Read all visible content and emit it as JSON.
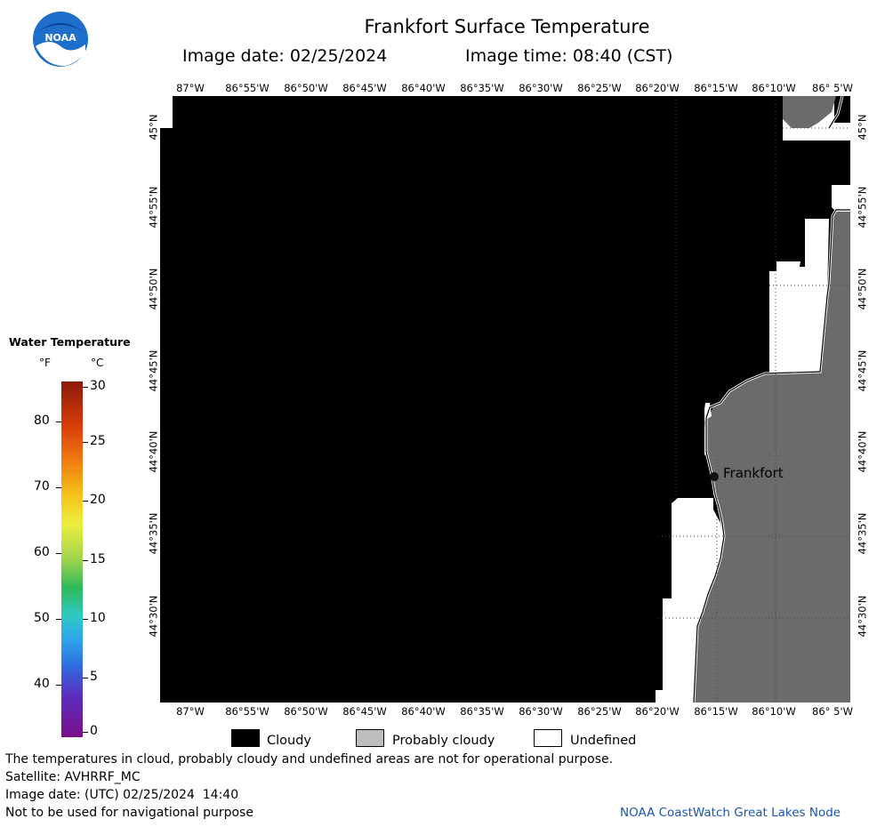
{
  "header": {
    "logo_text": "NOAA",
    "title": "Frankfort Surface Temperature",
    "image_date": "Image date: 02/25/2024",
    "image_time": "Image time: 08:40 (CST)"
  },
  "map": {
    "longitude_labels": [
      "87°W",
      "86°55'W",
      "86°50'W",
      "86°45'W",
      "86°40'W",
      "86°35'W",
      "86°30'W",
      "86°25'W",
      "86°20'W",
      "86°15'W",
      "86°10'W",
      "86° 5'W"
    ],
    "latitude_labels": [
      "45°N",
      "44°55'N",
      "44°50'N",
      "44°45'N",
      "44°40'N",
      "44°35'N",
      "44°30'N"
    ],
    "city_label": "Frankfort",
    "colors": {
      "cloudy": "#000000",
      "land": "#6b6b6b",
      "undefined": "#ffffff"
    }
  },
  "legend": {
    "title": "Water Temperature",
    "unit_f": "°F",
    "unit_c": "°C",
    "f_ticks": [
      "80",
      "70",
      "60",
      "50",
      "40"
    ],
    "c_ticks": [
      "30",
      "25",
      "20",
      "15",
      "10",
      "5",
      "0"
    ]
  },
  "key": {
    "cloudy": "Cloudy",
    "probably_cloudy": "Probably cloudy",
    "undefined": "Undefined"
  },
  "footer": {
    "line1": "The temperatures in cloud, probably cloudy and undefined areas are not for operational purpose.",
    "line2": "Satellite: AVHRRF_MC",
    "line3": "Image date: (UTC) 02/25/2024  14:40",
    "line4": "Not to be used for navigational purpose",
    "credit": "NOAA CoastWatch Great Lakes Node"
  }
}
